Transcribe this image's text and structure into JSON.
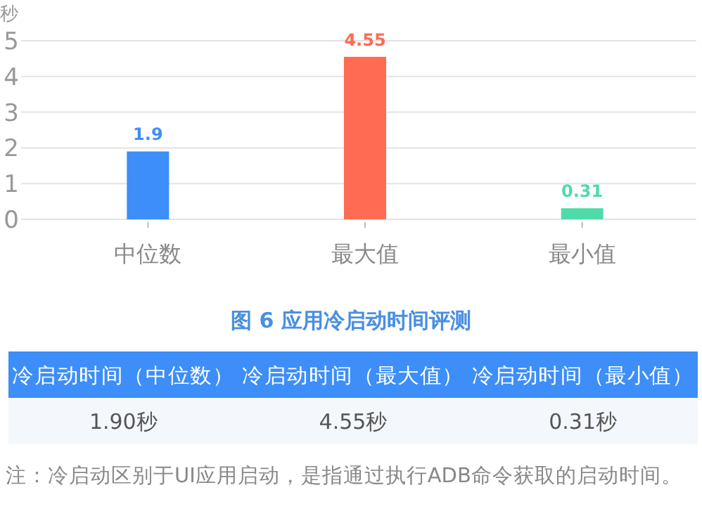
{
  "chart_data": {
    "type": "bar",
    "title": "图 6 应用冷启动时间评测",
    "ylabel": "秒",
    "categories": [
      "中位数",
      "最大值",
      "最小值"
    ],
    "values": [
      1.9,
      4.55,
      0.31
    ],
    "colors": [
      "#3d8ef8",
      "#ff6b53",
      "#4fdba8"
    ],
    "ylim": [
      0,
      5
    ],
    "yticks": [
      0,
      1,
      2,
      3,
      4,
      5
    ],
    "grid": "y",
    "data_labels": true,
    "annotations": [
      "冷启动时间（中位数）",
      "冷启动时间（最大值）",
      "冷启动时间（最小值）",
      "1.90秒",
      "4.55秒",
      "0.31秒",
      "注：冷启动区别于UI应用启动，是指通过执行ADB命令获取的启动时间。"
    ]
  }
}
